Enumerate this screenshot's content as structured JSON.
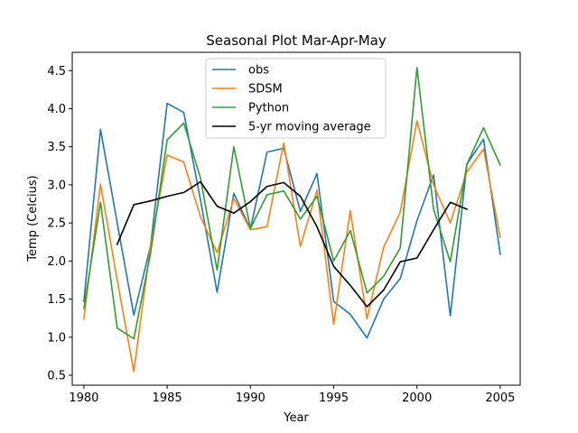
{
  "chart_data": {
    "type": "line",
    "title": "Seasonal Plot Mar-Apr-May",
    "xlabel": "Year",
    "ylabel": "Temp (Celcius)",
    "xlim": [
      1979.3,
      2006.2
    ],
    "ylim": [
      0.37,
      4.74
    ],
    "x_ticks": [
      1980,
      1985,
      1990,
      1995,
      2000,
      2005
    ],
    "y_ticks": [
      0.5,
      1.0,
      1.5,
      2.0,
      2.5,
      3.0,
      3.5,
      4.0,
      4.5
    ],
    "y_tick_labels": [
      "0.5",
      "1.0",
      "1.5",
      "2.0",
      "2.5",
      "3.0",
      "3.5",
      "4.0",
      "4.5"
    ],
    "grid": false,
    "legend_position": "top-center",
    "series": [
      {
        "name": "obs",
        "color": "#1f77b4",
        "x": [
          1980,
          1981,
          1982,
          1983,
          1984,
          1985,
          1986,
          1987,
          1988,
          1989,
          1990,
          1991,
          1992,
          1993,
          1994,
          1995,
          1996,
          1997,
          1998,
          1999,
          2000,
          2001,
          2002,
          2003,
          2004,
          2005
        ],
        "y": [
          1.47,
          3.73,
          2.5,
          1.29,
          2.2,
          4.07,
          3.95,
          2.8,
          1.59,
          2.89,
          2.42,
          3.43,
          3.48,
          2.65,
          3.15,
          1.47,
          1.3,
          0.99,
          1.5,
          1.77,
          2.53,
          3.13,
          1.28,
          3.27,
          3.6,
          2.09
        ]
      },
      {
        "name": "SDSM",
        "color": "#ff7f0e",
        "x": [
          1980,
          1981,
          1982,
          1983,
          1984,
          1985,
          1986,
          1987,
          1988,
          1989,
          1990,
          1991,
          1992,
          1993,
          1994,
          1995,
          1996,
          1997,
          1998,
          1999,
          2000,
          2001,
          2002,
          2003,
          2004,
          2005
        ],
        "y": [
          1.24,
          3.01,
          1.75,
          0.55,
          2.2,
          3.39,
          3.3,
          2.58,
          2.11,
          2.82,
          2.41,
          2.45,
          3.55,
          2.19,
          2.93,
          1.17,
          2.66,
          1.24,
          2.18,
          2.64,
          3.84,
          3.0,
          2.5,
          3.17,
          3.47,
          2.31
        ]
      },
      {
        "name": "Python",
        "color": "#2ca02c",
        "x": [
          1980,
          1981,
          1982,
          1983,
          1984,
          1985,
          1986,
          1987,
          1988,
          1989,
          1990,
          1991,
          1992,
          1993,
          1994,
          1995,
          1996,
          1997,
          1998,
          1999,
          2000,
          2001,
          2002,
          2003,
          2004,
          2005
        ],
        "y": [
          1.38,
          2.77,
          1.12,
          0.98,
          2.1,
          3.59,
          3.81,
          3.09,
          1.88,
          3.5,
          2.43,
          2.87,
          2.92,
          2.55,
          2.85,
          2.0,
          2.4,
          1.58,
          1.8,
          2.17,
          4.54,
          2.68,
          1.99,
          3.27,
          3.75,
          3.26
        ]
      },
      {
        "name": "5-yr moving average",
        "color": "#000000",
        "x": [
          1982,
          1983,
          1984,
          1985,
          1986,
          1987,
          1988,
          1989,
          1990,
          1991,
          1992,
          1993,
          1994,
          1995,
          1996,
          1997,
          1998,
          1999,
          2000,
          2001,
          2002,
          2003
        ],
        "y": [
          2.22,
          2.74,
          2.79,
          2.85,
          2.9,
          3.04,
          2.72,
          2.63,
          2.78,
          2.98,
          3.03,
          2.85,
          2.45,
          1.93,
          1.68,
          1.4,
          1.62,
          1.99,
          2.04,
          2.41,
          2.77,
          2.68
        ]
      }
    ]
  }
}
